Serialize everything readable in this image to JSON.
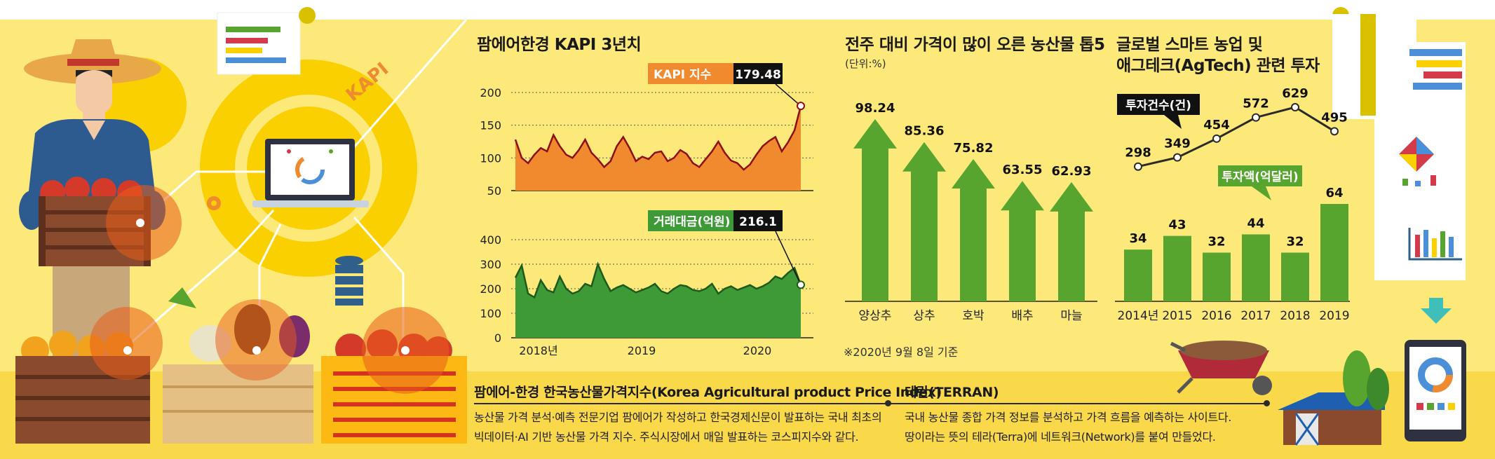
{
  "colors": {
    "background": "#fce97a",
    "ground": "#f9d94a",
    "orange": "#ef8a2e",
    "dark_red": "#8e0e1a",
    "green_fill": "#3d9a36",
    "dark_green": "#1e5a1c",
    "bar_green": "#57a52f",
    "black_label": "#111111"
  },
  "illustration": {
    "kapi_text": "KAPI"
  },
  "kapi_chart": {
    "title": "팜에어한경 KAPI 3년치",
    "x_tick_labels": [
      "2018년",
      "2019",
      "2020"
    ],
    "chart_data": [
      {
        "type": "area",
        "series": [
          {
            "name": "KAPI 지수",
            "values": [
              128,
              100,
              92,
              105,
              115,
              110,
              135,
              118,
              105,
              100,
              112,
              128,
              108,
              98,
              86,
              95,
              118,
              132,
              115,
              95,
              102,
              98,
              108,
              110,
              95,
              100,
              112,
              106,
              92,
              86,
              98,
              110,
              125,
              108,
              96,
              92,
              82,
              90,
              105,
              118,
              126,
              132,
              110,
              124,
              142,
              179.48
            ]
          }
        ],
        "ylim": [
          50,
          200
        ],
        "y_ticks": [
          50,
          100,
          150,
          200
        ],
        "latest_label": "KAPI 지수",
        "latest_value": "179.48"
      },
      {
        "type": "area",
        "series": [
          {
            "name": "거래대금(억원)",
            "values": [
              245,
              295,
              180,
              165,
              235,
              195,
              185,
              250,
              200,
              180,
              190,
              220,
              210,
              300,
              240,
              190,
              205,
              215,
              200,
              185,
              195,
              205,
              220,
              190,
              180,
              200,
              215,
              210,
              195,
              190,
              200,
              220,
              180,
              200,
              210,
              195,
              205,
              215,
              200,
              210,
              225,
              250,
              240,
              265,
              285,
              216.1
            ]
          }
        ],
        "ylim": [
          0,
          400
        ],
        "y_ticks": [
          0,
          100,
          200,
          300,
          400
        ],
        "latest_label": "거래대금(억원)",
        "latest_value": "216.1"
      }
    ]
  },
  "top5_chart": {
    "title": "전주 대비 가격이 많이 오른 농산물 톱5",
    "unit": "(단위:%)",
    "note": "※2020년 9월 8일 기준",
    "chart_data": {
      "type": "bar",
      "categories": [
        "양상추",
        "상추",
        "호박",
        "배추",
        "마늘"
      ],
      "values": [
        98.24,
        85.36,
        75.82,
        63.55,
        62.93
      ],
      "value_labels": [
        "98.24",
        "85.36",
        "75.82",
        "63.55",
        "62.93"
      ],
      "ylim": [
        0,
        110
      ]
    }
  },
  "agtech_chart": {
    "title_line1": "글로벌 스마트 농업 및",
    "title_line2": "애그테크(AgTech) 관련 투자",
    "chart_data": {
      "type": "bar",
      "categories": [
        "2014년",
        "2015",
        "2016",
        "2017",
        "2018",
        "2019"
      ],
      "series": [
        {
          "name": "투자건수(건)",
          "type": "line",
          "values": [
            298,
            349,
            454,
            572,
            629,
            495
          ]
        },
        {
          "name": "투자액(억달러)",
          "type": "bar",
          "values": [
            34,
            43,
            32,
            44,
            32,
            64
          ]
        }
      ]
    }
  },
  "definitions": {
    "kapi": {
      "title": "팜에어-한경 한국농산물가격지수(Korea Agricultural product Price Index)",
      "body": "농산물 가격 분석·예측 전문기업 팜에어가 작성하고 한국경제신문이 발표하는 국내 최초의 빅데이터·AI 기반 농산물 가격 지수. 주식시장에서 매일 발표하는 코스피지수와 같다."
    },
    "terran": {
      "title": "테란(TERRAN)",
      "body": "국내 농산물 종합 가격 정보를 분석하고 가격 흐름을 예측하는 사이트다. 땅이라는 뜻의 테라(Terra)에 네트워크(Network)를 붙여 만들었다."
    }
  }
}
